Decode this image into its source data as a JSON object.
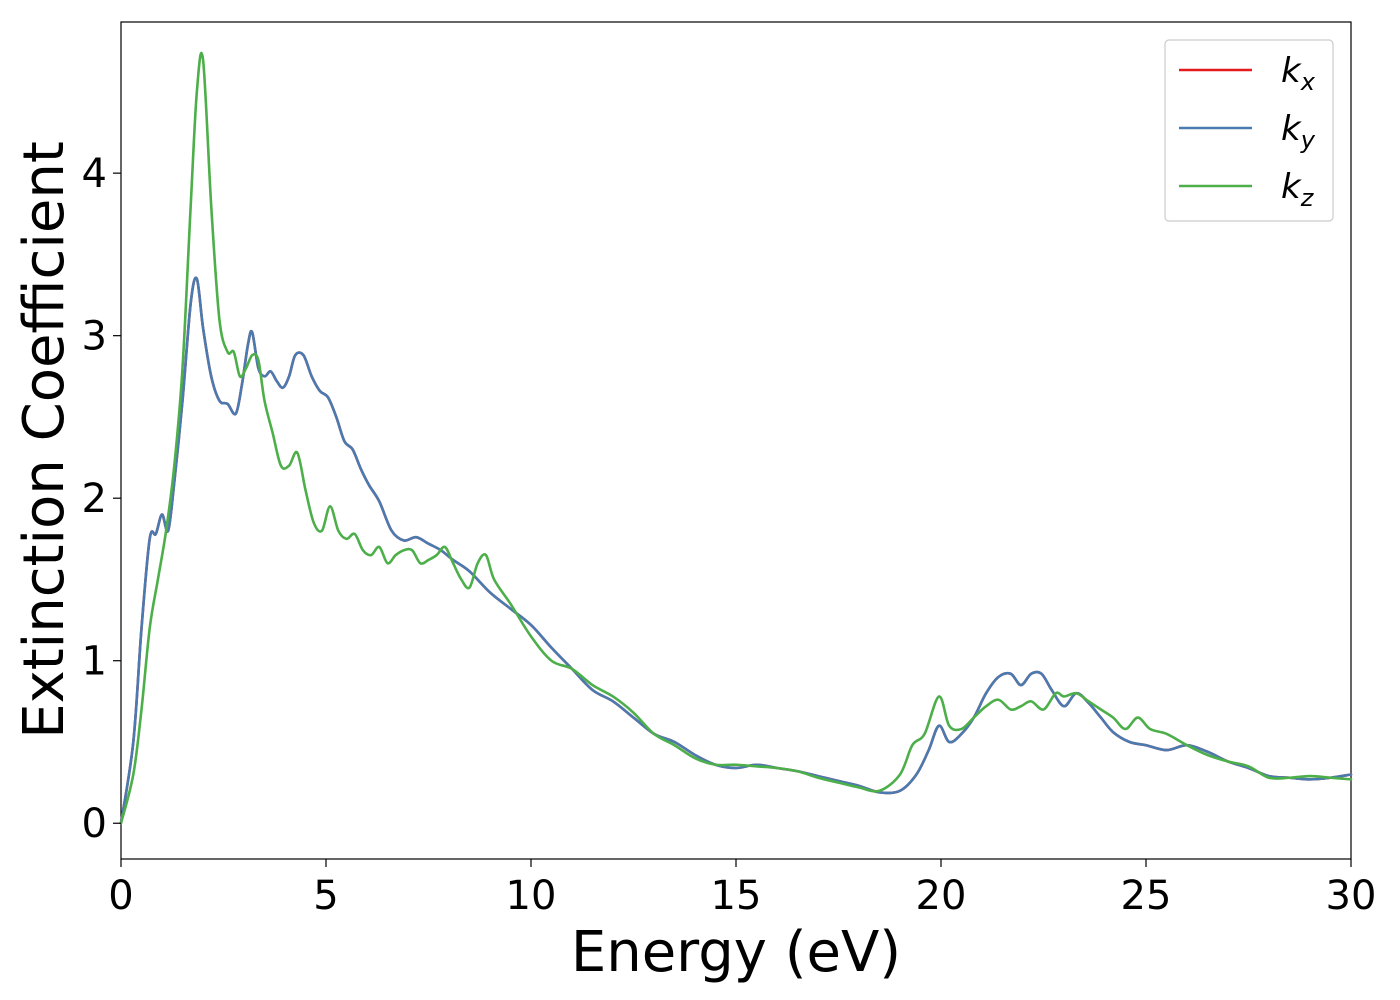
{
  "chart_data": {
    "type": "line",
    "title": "",
    "xlabel": "Energy (eV)",
    "ylabel": "Extinction Coefficient",
    "xlim": [
      0,
      30
    ],
    "ylim": [
      -0.22,
      4.93
    ],
    "xticks": [
      0,
      5,
      10,
      15,
      20,
      25,
      30
    ],
    "yticks": [
      0,
      1,
      2,
      3,
      4
    ],
    "grid": false,
    "legend_position": "top-right",
    "series": [
      {
        "name": "k_x",
        "legend_main": "k",
        "legend_sub": "x",
        "color": "#e41a1c",
        "x": [
          0,
          0.3,
          0.5,
          0.7,
          0.85,
          1.0,
          1.15,
          1.3,
          1.5,
          1.7,
          1.85,
          2.0,
          2.2,
          2.4,
          2.6,
          2.8,
          2.95,
          3.1,
          3.2,
          3.35,
          3.5,
          3.65,
          3.8,
          3.95,
          4.1,
          4.25,
          4.45,
          4.65,
          4.85,
          5.05,
          5.25,
          5.45,
          5.65,
          5.85,
          6.05,
          6.3,
          6.6,
          6.9,
          7.2,
          7.5,
          7.8,
          8.1,
          8.5,
          9.0,
          9.5,
          10.0,
          10.5,
          11.0,
          11.5,
          12.0,
          12.5,
          13.0,
          13.5,
          14.0,
          14.5,
          15.0,
          15.5,
          16.0,
          16.5,
          17.0,
          17.5,
          18.0,
          18.5,
          19.0,
          19.4,
          19.7,
          19.95,
          20.2,
          20.5,
          20.8,
          21.1,
          21.4,
          21.7,
          21.95,
          22.2,
          22.45,
          22.7,
          23.0,
          23.3,
          23.6,
          23.9,
          24.2,
          24.6,
          25.0,
          25.5,
          26.0,
          26.5,
          27.0,
          27.5,
          28.0,
          28.5,
          29.0,
          29.5,
          30.0
        ],
        "values": [
          0,
          0.5,
          1.2,
          1.75,
          1.78,
          1.9,
          1.8,
          2.1,
          2.6,
          3.2,
          3.35,
          3.05,
          2.75,
          2.6,
          2.58,
          2.52,
          2.7,
          2.95,
          3.02,
          2.8,
          2.75,
          2.78,
          2.72,
          2.68,
          2.75,
          2.88,
          2.88,
          2.75,
          2.66,
          2.62,
          2.5,
          2.35,
          2.3,
          2.18,
          2.08,
          1.98,
          1.8,
          1.74,
          1.76,
          1.72,
          1.68,
          1.62,
          1.55,
          1.42,
          1.32,
          1.22,
          1.08,
          0.95,
          0.82,
          0.75,
          0.65,
          0.55,
          0.5,
          0.42,
          0.36,
          0.34,
          0.36,
          0.34,
          0.32,
          0.29,
          0.26,
          0.23,
          0.19,
          0.2,
          0.3,
          0.45,
          0.6,
          0.5,
          0.55,
          0.65,
          0.8,
          0.9,
          0.92,
          0.85,
          0.92,
          0.92,
          0.82,
          0.72,
          0.8,
          0.74,
          0.65,
          0.56,
          0.5,
          0.48,
          0.45,
          0.48,
          0.44,
          0.38,
          0.34,
          0.29,
          0.28,
          0.27,
          0.28,
          0.3
        ]
      },
      {
        "name": "k_y",
        "legend_main": "k",
        "legend_sub": "y",
        "color": "#4a7bb0",
        "x": [
          0,
          0.3,
          0.5,
          0.7,
          0.85,
          1.0,
          1.15,
          1.3,
          1.5,
          1.7,
          1.85,
          2.0,
          2.2,
          2.4,
          2.6,
          2.8,
          2.95,
          3.1,
          3.2,
          3.35,
          3.5,
          3.65,
          3.8,
          3.95,
          4.1,
          4.25,
          4.45,
          4.65,
          4.85,
          5.05,
          5.25,
          5.45,
          5.65,
          5.85,
          6.05,
          6.3,
          6.6,
          6.9,
          7.2,
          7.5,
          7.8,
          8.1,
          8.5,
          9.0,
          9.5,
          10.0,
          10.5,
          11.0,
          11.5,
          12.0,
          12.5,
          13.0,
          13.5,
          14.0,
          14.5,
          15.0,
          15.5,
          16.0,
          16.5,
          17.0,
          17.5,
          18.0,
          18.5,
          19.0,
          19.4,
          19.7,
          19.95,
          20.2,
          20.5,
          20.8,
          21.1,
          21.4,
          21.7,
          21.95,
          22.2,
          22.45,
          22.7,
          23.0,
          23.3,
          23.6,
          23.9,
          24.2,
          24.6,
          25.0,
          25.5,
          26.0,
          26.5,
          27.0,
          27.5,
          28.0,
          28.5,
          29.0,
          29.5,
          30.0
        ],
        "values": [
          0,
          0.5,
          1.2,
          1.75,
          1.78,
          1.9,
          1.8,
          2.1,
          2.6,
          3.2,
          3.35,
          3.05,
          2.75,
          2.6,
          2.58,
          2.52,
          2.7,
          2.95,
          3.02,
          2.8,
          2.75,
          2.78,
          2.72,
          2.68,
          2.75,
          2.88,
          2.88,
          2.75,
          2.66,
          2.62,
          2.5,
          2.35,
          2.3,
          2.18,
          2.08,
          1.98,
          1.8,
          1.74,
          1.76,
          1.72,
          1.68,
          1.62,
          1.55,
          1.42,
          1.32,
          1.22,
          1.08,
          0.95,
          0.82,
          0.75,
          0.65,
          0.55,
          0.5,
          0.42,
          0.36,
          0.34,
          0.36,
          0.34,
          0.32,
          0.29,
          0.26,
          0.23,
          0.19,
          0.2,
          0.3,
          0.45,
          0.6,
          0.5,
          0.55,
          0.65,
          0.8,
          0.9,
          0.92,
          0.85,
          0.92,
          0.92,
          0.82,
          0.72,
          0.8,
          0.74,
          0.65,
          0.56,
          0.5,
          0.48,
          0.45,
          0.48,
          0.44,
          0.38,
          0.34,
          0.29,
          0.28,
          0.27,
          0.28,
          0.3
        ]
      },
      {
        "name": "k_z",
        "legend_main": "k",
        "legend_sub": "z",
        "color": "#4daf4a",
        "x": [
          0,
          0.3,
          0.5,
          0.7,
          0.9,
          1.1,
          1.3,
          1.5,
          1.7,
          1.85,
          2.0,
          2.2,
          2.4,
          2.6,
          2.75,
          2.9,
          3.05,
          3.2,
          3.35,
          3.5,
          3.7,
          3.9,
          4.1,
          4.3,
          4.5,
          4.7,
          4.9,
          5.1,
          5.3,
          5.5,
          5.7,
          5.9,
          6.1,
          6.3,
          6.5,
          6.7,
          6.9,
          7.1,
          7.3,
          7.5,
          7.7,
          7.9,
          8.1,
          8.3,
          8.5,
          8.7,
          8.9,
          9.1,
          9.5,
          10.0,
          10.5,
          11.0,
          11.5,
          12.0,
          12.5,
          13.0,
          13.5,
          14.0,
          14.5,
          15.0,
          15.5,
          16.0,
          16.5,
          17.0,
          17.5,
          18.0,
          18.5,
          19.0,
          19.3,
          19.6,
          19.95,
          20.2,
          20.5,
          20.8,
          21.1,
          21.4,
          21.7,
          21.95,
          22.2,
          22.5,
          22.8,
          23.0,
          23.3,
          23.6,
          23.9,
          24.2,
          24.5,
          24.8,
          25.1,
          25.5,
          26.0,
          26.5,
          27.0,
          27.5,
          28.0,
          28.5,
          29.0,
          29.5,
          30.0
        ],
        "values": [
          0,
          0.3,
          0.7,
          1.2,
          1.5,
          1.8,
          2.2,
          2.8,
          3.8,
          4.5,
          4.7,
          3.8,
          3.1,
          2.9,
          2.9,
          2.75,
          2.8,
          2.88,
          2.85,
          2.6,
          2.4,
          2.2,
          2.2,
          2.28,
          2.05,
          1.85,
          1.8,
          1.95,
          1.8,
          1.75,
          1.78,
          1.68,
          1.65,
          1.7,
          1.6,
          1.65,
          1.68,
          1.68,
          1.6,
          1.62,
          1.65,
          1.7,
          1.6,
          1.5,
          1.45,
          1.6,
          1.65,
          1.5,
          1.35,
          1.15,
          1.0,
          0.95,
          0.85,
          0.78,
          0.68,
          0.55,
          0.48,
          0.4,
          0.36,
          0.36,
          0.35,
          0.34,
          0.32,
          0.28,
          0.25,
          0.22,
          0.2,
          0.3,
          0.48,
          0.55,
          0.78,
          0.6,
          0.58,
          0.65,
          0.72,
          0.76,
          0.7,
          0.72,
          0.75,
          0.7,
          0.8,
          0.78,
          0.8,
          0.75,
          0.7,
          0.65,
          0.58,
          0.65,
          0.58,
          0.55,
          0.48,
          0.42,
          0.38,
          0.35,
          0.28,
          0.28,
          0.29,
          0.28,
          0.27
        ]
      }
    ]
  }
}
